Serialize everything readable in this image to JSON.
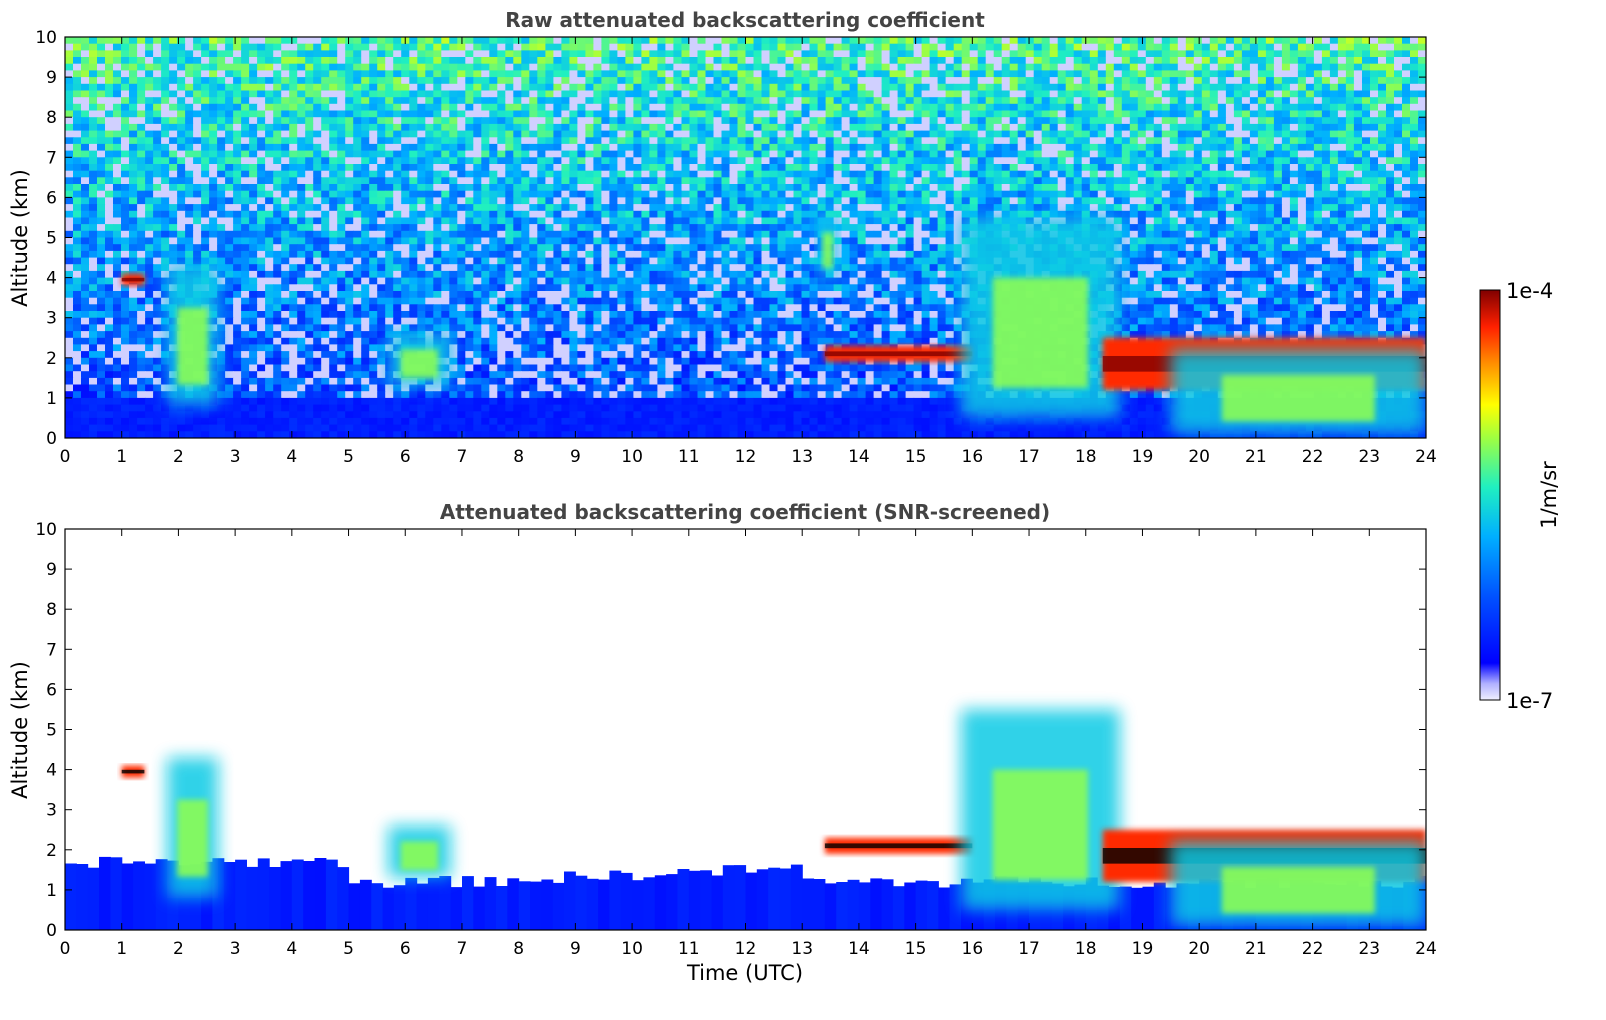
{
  "chart_data": [
    {
      "type": "heatmap",
      "title": "Raw attenuated backscattering coefficient",
      "xlabel": "",
      "ylabel": "Altitude (km)",
      "xlim": [
        0,
        24
      ],
      "ylim": [
        0,
        10
      ],
      "xticks": [
        "0",
        "1",
        "2",
        "3",
        "4",
        "5",
        "6",
        "7",
        "8",
        "9",
        "10",
        "11",
        "12",
        "13",
        "14",
        "15",
        "16",
        "17",
        "18",
        "19",
        "20",
        "21",
        "22",
        "23",
        "24"
      ],
      "yticks": [
        "0",
        "1",
        "2",
        "3",
        "4",
        "5",
        "6",
        "7",
        "8",
        "9",
        "10"
      ],
      "screened": false,
      "features": [
        {
          "kind": "cloud_layer",
          "x": [
            1.0,
            1.4
          ],
          "y": [
            3.8,
            4.1
          ],
          "level": "high"
        },
        {
          "kind": "cloud_plume",
          "x": [
            1.8,
            2.7
          ],
          "y": [
            0.8,
            4.3
          ],
          "level": "medium"
        },
        {
          "kind": "cloud_plume",
          "x": [
            5.7,
            6.8
          ],
          "y": [
            1.3,
            2.6
          ],
          "level": "medium"
        },
        {
          "kind": "cloud_layer",
          "x": [
            13.4,
            16.0
          ],
          "y": [
            1.9,
            2.3
          ],
          "level": "high"
        },
        {
          "kind": "cloud_plume",
          "x": [
            13.3,
            13.6
          ],
          "y": [
            4.0,
            5.6
          ],
          "level": "medium"
        },
        {
          "kind": "cloud_plume",
          "x": [
            15.8,
            18.6
          ],
          "y": [
            0.5,
            5.5
          ],
          "level": "medium"
        },
        {
          "kind": "cloud_layer",
          "x": [
            18.3,
            24.0
          ],
          "y": [
            1.2,
            2.5
          ],
          "level": "high"
        },
        {
          "kind": "cloud_plume",
          "x": [
            19.5,
            24.0
          ],
          "y": [
            0.1,
            2.2
          ],
          "level": "medium"
        }
      ]
    },
    {
      "type": "heatmap",
      "title": "Attenuated backscattering coefficient (SNR-screened)",
      "xlabel": "Time (UTC)",
      "ylabel": "Altitude (km)",
      "xlim": [
        0,
        24
      ],
      "ylim": [
        0,
        10
      ],
      "xticks": [
        "0",
        "1",
        "2",
        "3",
        "4",
        "5",
        "6",
        "7",
        "8",
        "9",
        "10",
        "11",
        "12",
        "13",
        "14",
        "15",
        "16",
        "17",
        "18",
        "19",
        "20",
        "21",
        "22",
        "23",
        "24"
      ],
      "yticks": [
        "0",
        "1",
        "2",
        "3",
        "4",
        "5",
        "6",
        "7",
        "8",
        "9",
        "10"
      ],
      "screened": true,
      "features": [
        {
          "kind": "cloud_layer",
          "x": [
            1.0,
            1.4
          ],
          "y": [
            3.8,
            4.1
          ],
          "level": "high"
        },
        {
          "kind": "cloud_plume",
          "x": [
            1.8,
            2.7
          ],
          "y": [
            0.8,
            4.3
          ],
          "level": "medium"
        },
        {
          "kind": "cloud_plume",
          "x": [
            5.7,
            6.8
          ],
          "y": [
            1.3,
            2.6
          ],
          "level": "medium"
        },
        {
          "kind": "cloud_layer",
          "x": [
            13.4,
            16.0
          ],
          "y": [
            1.9,
            2.3
          ],
          "level": "high"
        },
        {
          "kind": "cloud_plume",
          "x": [
            15.8,
            18.6
          ],
          "y": [
            0.5,
            5.5
          ],
          "level": "medium"
        },
        {
          "kind": "cloud_layer",
          "x": [
            18.3,
            24.0
          ],
          "y": [
            1.2,
            2.5
          ],
          "level": "high"
        },
        {
          "kind": "cloud_plume",
          "x": [
            19.5,
            24.0
          ],
          "y": [
            0.1,
            2.2
          ],
          "level": "medium"
        }
      ]
    }
  ],
  "colorbar": {
    "label": "1/m/sr",
    "max_label": "1e-4",
    "min_label": "1e-7",
    "scale": "log",
    "colors": [
      "#f0f0ff",
      "#c8c8ff",
      "#9696ff",
      "#0000ff",
      "#0040ff",
      "#0090ff",
      "#00d0ff",
      "#20f0d0",
      "#80ff80",
      "#d0ff20",
      "#ffe000",
      "#ff9000",
      "#ff3000",
      "#c00000",
      "#800000"
    ]
  }
}
